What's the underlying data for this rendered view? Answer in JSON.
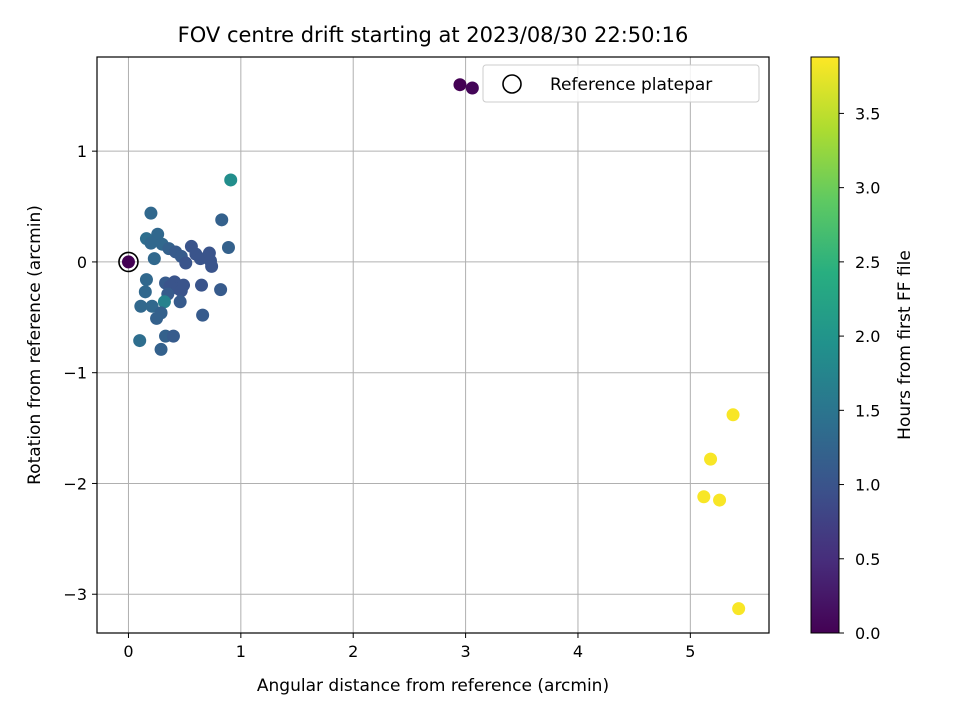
{
  "chart_data": {
    "type": "scatter",
    "title": "FOV centre drift starting at 2023/08/30 22:50:16",
    "xlabel": "Angular distance from reference (arcmin)",
    "ylabel": "Rotation from reference (arcmin)",
    "xlim": [
      -0.28,
      5.7
    ],
    "ylim": [
      -3.35,
      1.85
    ],
    "xticks": [
      0,
      1,
      2,
      3,
      4,
      5
    ],
    "yticks": [
      1,
      0,
      -1,
      -2,
      -3
    ],
    "xtick_labels": [
      "0",
      "1",
      "2",
      "3",
      "4",
      "5"
    ],
    "ytick_labels": [
      "1",
      "0",
      "−1",
      "−2",
      "−3"
    ],
    "grid": true,
    "legend": {
      "position": "top-right",
      "entries": [
        "Reference platepar"
      ]
    },
    "reference_point": {
      "x": 0,
      "y": 0
    },
    "colorbar": {
      "label": "Hours from first FF file",
      "colormap": "viridis",
      "range": [
        0,
        3.88
      ],
      "ticks": [
        0.0,
        0.5,
        1.0,
        1.5,
        2.0,
        2.5,
        3.0,
        3.5
      ],
      "tick_labels": [
        "0.0",
        "0.5",
        "1.0",
        "1.5",
        "2.0",
        "2.5",
        "3.0",
        "3.5"
      ]
    },
    "points": [
      {
        "x": 2.95,
        "y": 1.6,
        "c": 0.0
      },
      {
        "x": 3.06,
        "y": 1.57,
        "c": 0.05
      },
      {
        "x": 0.0,
        "y": 0.0,
        "c": 0.0
      },
      {
        "x": 0.91,
        "y": 0.74,
        "c": 1.9
      },
      {
        "x": 0.2,
        "y": 0.44,
        "c": 1.3
      },
      {
        "x": 0.83,
        "y": 0.38,
        "c": 1.2
      },
      {
        "x": 0.16,
        "y": 0.21,
        "c": 1.4
      },
      {
        "x": 0.26,
        "y": 0.25,
        "c": 1.3
      },
      {
        "x": 0.2,
        "y": 0.17,
        "c": 1.3
      },
      {
        "x": 0.3,
        "y": 0.16,
        "c": 1.3
      },
      {
        "x": 0.36,
        "y": 0.12,
        "c": 1.2
      },
      {
        "x": 0.42,
        "y": 0.09,
        "c": 1.1
      },
      {
        "x": 0.47,
        "y": 0.05,
        "c": 1.1
      },
      {
        "x": 0.56,
        "y": 0.14,
        "c": 1.0
      },
      {
        "x": 0.6,
        "y": 0.07,
        "c": 1.0
      },
      {
        "x": 0.64,
        "y": 0.03,
        "c": 1.0
      },
      {
        "x": 0.72,
        "y": 0.08,
        "c": 1.0
      },
      {
        "x": 0.73,
        "y": 0.01,
        "c": 1.0
      },
      {
        "x": 0.74,
        "y": -0.04,
        "c": 1.0
      },
      {
        "x": 0.89,
        "y": 0.13,
        "c": 1.2
      },
      {
        "x": 0.23,
        "y": 0.03,
        "c": 1.3
      },
      {
        "x": 0.51,
        "y": -0.01,
        "c": 1.0
      },
      {
        "x": 0.16,
        "y": -0.16,
        "c": 1.3
      },
      {
        "x": 0.33,
        "y": -0.19,
        "c": 1.1
      },
      {
        "x": 0.41,
        "y": -0.18,
        "c": 1.0
      },
      {
        "x": 0.37,
        "y": -0.22,
        "c": 1.0
      },
      {
        "x": 0.44,
        "y": -0.24,
        "c": 1.0
      },
      {
        "x": 0.49,
        "y": -0.21,
        "c": 1.0
      },
      {
        "x": 0.47,
        "y": -0.26,
        "c": 1.0
      },
      {
        "x": 0.35,
        "y": -0.29,
        "c": 1.1
      },
      {
        "x": 0.65,
        "y": -0.21,
        "c": 1.0
      },
      {
        "x": 0.82,
        "y": -0.25,
        "c": 1.1
      },
      {
        "x": 0.15,
        "y": -0.27,
        "c": 1.3
      },
      {
        "x": 0.32,
        "y": -0.36,
        "c": 1.7
      },
      {
        "x": 0.46,
        "y": -0.36,
        "c": 1.1
      },
      {
        "x": 0.11,
        "y": -0.4,
        "c": 1.3
      },
      {
        "x": 0.21,
        "y": -0.4,
        "c": 1.3
      },
      {
        "x": 0.29,
        "y": -0.46,
        "c": 1.2
      },
      {
        "x": 0.25,
        "y": -0.51,
        "c": 1.2
      },
      {
        "x": 0.66,
        "y": -0.48,
        "c": 1.1
      },
      {
        "x": 0.33,
        "y": -0.67,
        "c": 1.2
      },
      {
        "x": 0.4,
        "y": -0.67,
        "c": 1.1
      },
      {
        "x": 0.1,
        "y": -0.71,
        "c": 1.4
      },
      {
        "x": 0.29,
        "y": -0.79,
        "c": 1.2
      },
      {
        "x": 5.38,
        "y": -1.38,
        "c": 3.85
      },
      {
        "x": 5.18,
        "y": -1.78,
        "c": 3.85
      },
      {
        "x": 5.12,
        "y": -2.12,
        "c": 3.85
      },
      {
        "x": 5.26,
        "y": -2.15,
        "c": 3.85
      },
      {
        "x": 5.43,
        "y": -3.13,
        "c": 3.85
      }
    ]
  }
}
